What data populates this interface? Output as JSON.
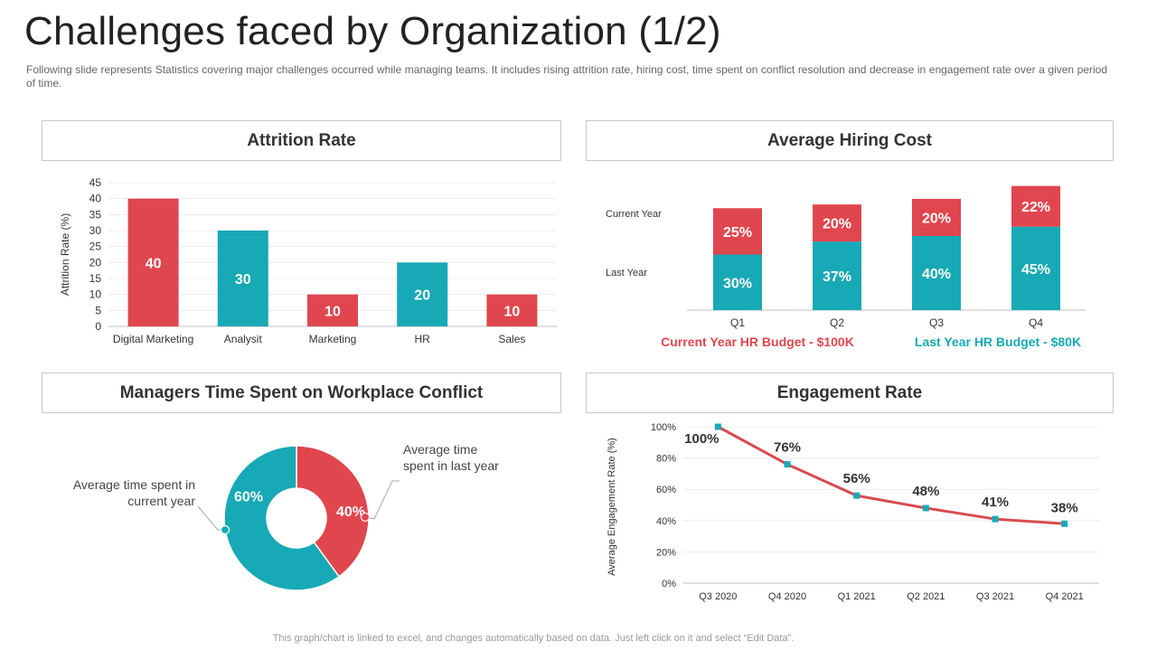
{
  "title": "Challenges faced by Organization (1/2)",
  "subtitle": "Following slide represents Statistics covering major challenges occurred while managing teams. It includes rising attrition rate, hiring cost, time spent on conflict resolution and decrease in engagement rate over a given  period of time.",
  "footer": "This graph/chart is linked to excel, and changes automatically based on data. Just left click on it and select “Edit Data”.",
  "colors": {
    "red": "#e0464e",
    "teal": "#17a9b5",
    "line": "#d94a4f",
    "text": "#333333"
  },
  "panels": {
    "attrition": {
      "title": "Attrition Rate"
    },
    "hiring": {
      "title": "Average Hiring Cost"
    },
    "conflict": {
      "title": "Managers Time Spent on Workplace Conflict"
    },
    "engagement": {
      "title": "Engagement Rate"
    }
  },
  "chart_data": [
    {
      "id": "attrition",
      "type": "bar",
      "title": "Attrition Rate",
      "ylabel": "Attrition Rate (%)",
      "xlabel": "",
      "categories": [
        "Digital Marketing",
        "Analysit",
        "Marketing",
        "HR",
        "Sales"
      ],
      "values": [
        40,
        30,
        10,
        20,
        10
      ],
      "bar_colors": [
        "red",
        "teal",
        "red",
        "teal",
        "red"
      ],
      "ylim": [
        0,
        45
      ],
      "yticks": [
        0,
        5,
        10,
        15,
        20,
        25,
        30,
        35,
        40,
        45
      ],
      "grid": true
    },
    {
      "id": "hiring",
      "type": "bar",
      "stacked": true,
      "title": "Average Hiring Cost",
      "categories": [
        "Q1",
        "Q2",
        "Q3",
        "Q4"
      ],
      "series": [
        {
          "name": "Last Year",
          "color": "teal",
          "values": [
            30,
            37,
            40,
            45
          ],
          "labels": [
            "30%",
            "37%",
            "40%",
            "45%"
          ]
        },
        {
          "name": "Current Year",
          "color": "red",
          "values": [
            25,
            20,
            20,
            22
          ],
          "labels": [
            "25%",
            "20%",
            "20%",
            "22%"
          ]
        }
      ],
      "row_labels": [
        "Current Year",
        "Last Year"
      ],
      "budgets": [
        {
          "text": "Current Year HR Budget - $100K",
          "color": "red"
        },
        {
          "text": "Last Year HR Budget - $80K",
          "color": "teal"
        }
      ]
    },
    {
      "id": "conflict",
      "type": "pie",
      "donut": true,
      "title": "Managers Time Spent on Workplace Conflict",
      "slices": [
        {
          "name": "Average time spent in last year",
          "value": 40,
          "label": "40%",
          "color": "red",
          "annotation": [
            "Average time",
            "spent in last year"
          ]
        },
        {
          "name": "Average time spent in current year",
          "value": 60,
          "label": "60%",
          "color": "teal",
          "annotation": [
            "Average time spent in",
            "current year"
          ]
        }
      ]
    },
    {
      "id": "engagement",
      "type": "line",
      "title": "Engagement Rate",
      "ylabel": "Average  Engagement  Rate  (%)",
      "categories": [
        "Q3 2020",
        "Q4 2020",
        "Q1 2021",
        "Q2 2021",
        "Q3 2021",
        "Q4 2021"
      ],
      "values": [
        100,
        76,
        56,
        48,
        41,
        38
      ],
      "labels": [
        "100%",
        "76%",
        "56%",
        "48%",
        "41%",
        "38%"
      ],
      "ylim": [
        0,
        100
      ],
      "yticks": [
        0,
        20,
        40,
        60,
        80,
        100
      ],
      "ytick_labels": [
        "0%",
        "20%",
        "40%",
        "60%",
        "80%",
        "100%"
      ],
      "grid": true
    }
  ]
}
